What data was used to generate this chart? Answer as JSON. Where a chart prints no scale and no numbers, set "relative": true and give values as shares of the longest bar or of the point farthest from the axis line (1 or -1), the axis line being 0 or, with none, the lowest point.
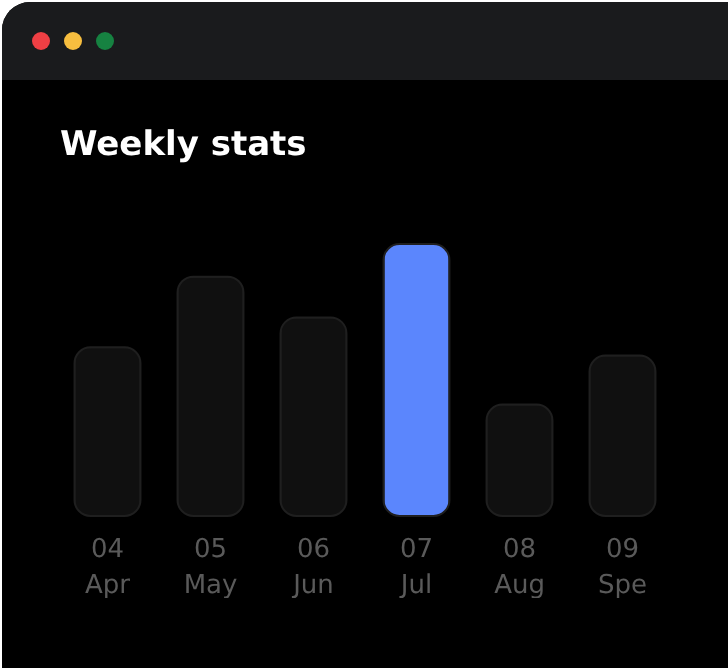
{
  "chart_data": {
    "type": "bar",
    "title": "Weekly stats",
    "relative": true,
    "categories": [
      "04\nApr",
      "05\nMay",
      "06\nJun",
      "07\nJul",
      "08\nAug",
      "09\nSpe"
    ],
    "values": [
      0.62,
      0.88,
      0.73,
      1,
      0.41,
      0.59
    ],
    "colors": [
      "#101010",
      "#101010",
      "#101010",
      "#5b86fd",
      "#101010",
      "#101010"
    ]
  }
}
